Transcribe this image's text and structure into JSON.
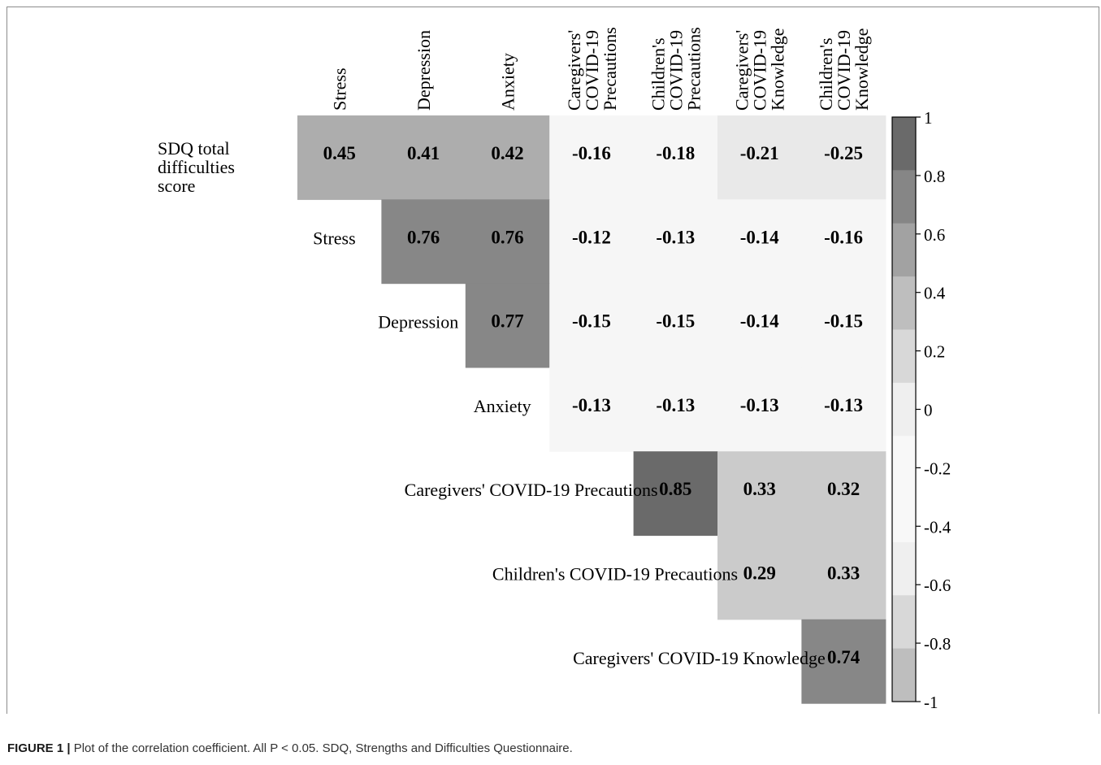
{
  "chart_data": {
    "type": "heatmap",
    "columns": [
      [
        "Stress"
      ],
      [
        "Depression"
      ],
      [
        "Anxiety"
      ],
      [
        "Caregivers'",
        "COVID-19",
        "Precautions"
      ],
      [
        "Children's",
        "COVID-19",
        "Precautions"
      ],
      [
        "Caregivers'",
        "COVID-19",
        "Knowledge"
      ],
      [
        "Children's",
        "COVID-19",
        "Knowledge"
      ]
    ],
    "rows": [
      {
        "label": [
          "SDQ total",
          "difficulties",
          "score"
        ],
        "values": [
          0.45,
          0.41,
          0.42,
          -0.16,
          -0.18,
          -0.21,
          -0.25
        ]
      },
      {
        "label": [
          "Stress"
        ],
        "values": [
          null,
          0.76,
          0.76,
          -0.12,
          -0.13,
          -0.14,
          -0.16
        ]
      },
      {
        "label": [
          "Depression"
        ],
        "values": [
          null,
          null,
          0.77,
          -0.15,
          -0.15,
          -0.14,
          -0.15
        ]
      },
      {
        "label": [
          "Anxiety"
        ],
        "values": [
          null,
          null,
          null,
          -0.13,
          -0.13,
          -0.13,
          -0.13
        ]
      },
      {
        "label": [
          "Caregivers' COVID-19 Precautions"
        ],
        "values": [
          null,
          null,
          null,
          null,
          0.85,
          0.33,
          0.32
        ]
      },
      {
        "label": [
          "Children's COVID-19 Precautions"
        ],
        "values": [
          null,
          null,
          null,
          null,
          null,
          0.29,
          0.33
        ]
      },
      {
        "label": [
          "Caregivers' COVID-19 Knowledge"
        ],
        "values": [
          null,
          null,
          null,
          null,
          null,
          null,
          0.74
        ]
      }
    ],
    "value_range": [
      -1,
      1
    ],
    "colorbar": {
      "ticks": [
        "1",
        "0.8",
        "0.6",
        "0.4",
        "0.2",
        "0",
        "-0.2",
        "-0.4",
        "-0.6",
        "-0.8",
        "-1"
      ],
      "bands_top_to_bottom": [
        "#6a6a6a",
        "#868686",
        "#a2a2a2",
        "#bebebe",
        "#d8d8d8",
        "#efefef",
        "#f8f8f8",
        "#f8f8f8",
        "#efefef",
        "#d8d8d8",
        "#bebebe"
      ]
    },
    "legend_position": "right"
  },
  "caption": {
    "lead": "FIGURE 1 |",
    "text": "Plot of the correlation coefficient. All P < 0.05. SDQ, Strengths and Difficulties Questionnaire."
  }
}
